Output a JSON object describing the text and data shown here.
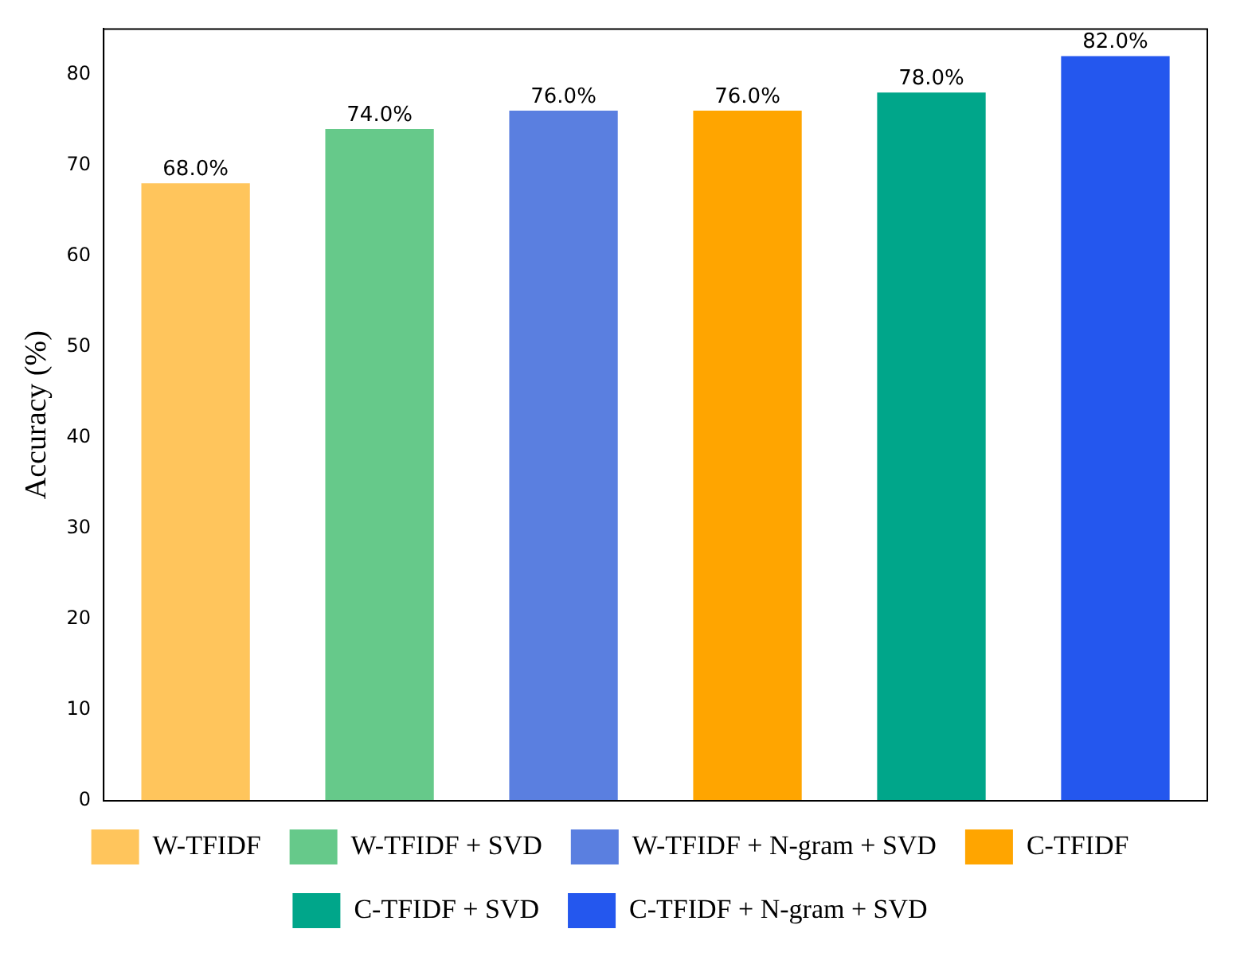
{
  "chart_data": {
    "type": "bar",
    "ylabel": "Accuracy (%)",
    "categories": [
      null,
      null,
      null,
      null,
      null,
      null
    ],
    "series": [
      {
        "name": "W-TFIDF",
        "color": "#ffc55c",
        "values": [
          68,
          null,
          null,
          null,
          null,
          null
        ],
        "value_labels": [
          "68.0%",
          null,
          null,
          null,
          null,
          null
        ]
      },
      {
        "name": "W-TFIDF + SVD",
        "color": "#66c98a",
        "values": [
          null,
          74,
          null,
          null,
          null,
          null
        ],
        "value_labels": [
          null,
          "74.0%",
          null,
          null,
          null,
          null
        ]
      },
      {
        "name": "W-TFIDF + N-gram + SVD",
        "color": "#5a7fe0",
        "values": [
          null,
          null,
          76,
          null,
          null,
          null
        ],
        "value_labels": [
          null,
          null,
          "76.0%",
          null,
          null,
          null
        ]
      },
      {
        "name": "C-TFIDF",
        "color": "#ffa500",
        "values": [
          null,
          null,
          null,
          76,
          null,
          null
        ],
        "value_labels": [
          null,
          null,
          null,
          "76.0%",
          null,
          null
        ]
      },
      {
        "name": "C-TFIDF + SVD",
        "color": "#00a68a",
        "values": [
          null,
          null,
          null,
          null,
          78,
          null
        ],
        "value_labels": [
          null,
          null,
          null,
          null,
          "78.0%",
          null
        ]
      },
      {
        "name": "C-TFIDF + N-gram + SVD",
        "color": "#2457ee",
        "values": [
          null,
          null,
          null,
          null,
          null,
          82
        ],
        "value_labels": [
          null,
          null,
          null,
          null,
          null,
          "82.0%"
        ]
      }
    ],
    "ylim": [
      0,
      85
    ],
    "yticks": [
      0,
      10,
      20,
      30,
      40,
      50,
      60,
      70,
      80
    ],
    "stacked": true,
    "tick_labels": "y",
    "grid": false,
    "legend": "bottom"
  }
}
